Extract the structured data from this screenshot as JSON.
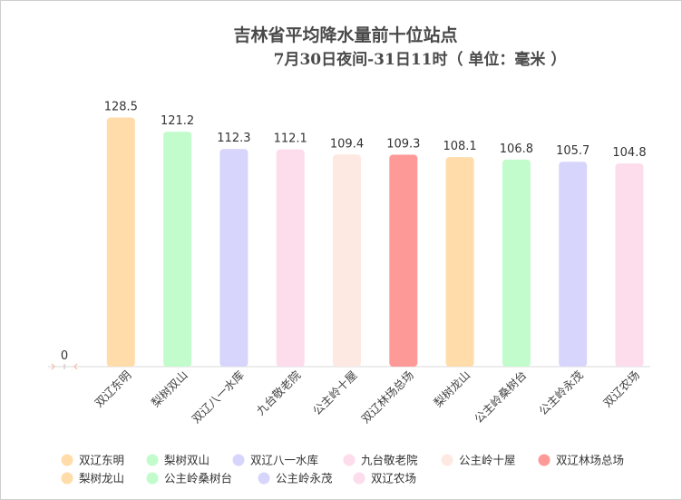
{
  "chart_data": {
    "type": "bar",
    "title": "吉林省平均降水量前十位站点",
    "subtitle": "7月30日夜间-31日11时（ 单位：毫米 ）",
    "categories": [
      "",
      "双辽东明",
      "梨树双山",
      "双辽八一水库",
      "九台敬老院",
      "公主岭十屋",
      "双辽林场总场",
      "梨树龙山",
      "公主岭桑树台",
      "公主岭永茂",
      "双辽农场"
    ],
    "values": [
      0,
      128.5,
      121.2,
      112.3,
      112.1,
      109.4,
      109.3,
      108.1,
      106.8,
      105.7,
      104.8
    ],
    "value_labels": [
      "0",
      "128.5",
      "121.2",
      "112.3",
      "112.1",
      "109.4",
      "109.3",
      "108.1",
      "106.8",
      "105.7",
      "104.8"
    ],
    "colors": [
      "#f4b8a4",
      "#ffdcaa",
      "#c2fccc",
      "#d7d5fb",
      "#fddcec",
      "#fee9e2",
      "#fd9a98",
      "#ffdcaa",
      "#c2fccc",
      "#d7d5fb",
      "#fddcec"
    ],
    "ylim": [
      0,
      140
    ],
    "grid": false,
    "legend": {
      "position": "bottom",
      "entries": [
        {
          "name": "双辽东明",
          "color": "#ffdcaa"
        },
        {
          "name": "梨树双山",
          "color": "#c2fccc"
        },
        {
          "name": "双辽八一水库",
          "color": "#d7d5fb"
        },
        {
          "name": "九台敬老院",
          "color": "#fddcec"
        },
        {
          "name": "公主岭十屋",
          "color": "#fee9e2"
        },
        {
          "name": "双辽林场总场",
          "color": "#fd9a98"
        },
        {
          "name": "梨树龙山",
          "color": "#ffdcaa"
        },
        {
          "name": "公主岭桑树台",
          "color": "#c2fccc"
        },
        {
          "name": "公主岭永茂",
          "color": "#d7d5fb"
        },
        {
          "name": "双辽农场",
          "color": "#fddcec"
        }
      ]
    }
  }
}
